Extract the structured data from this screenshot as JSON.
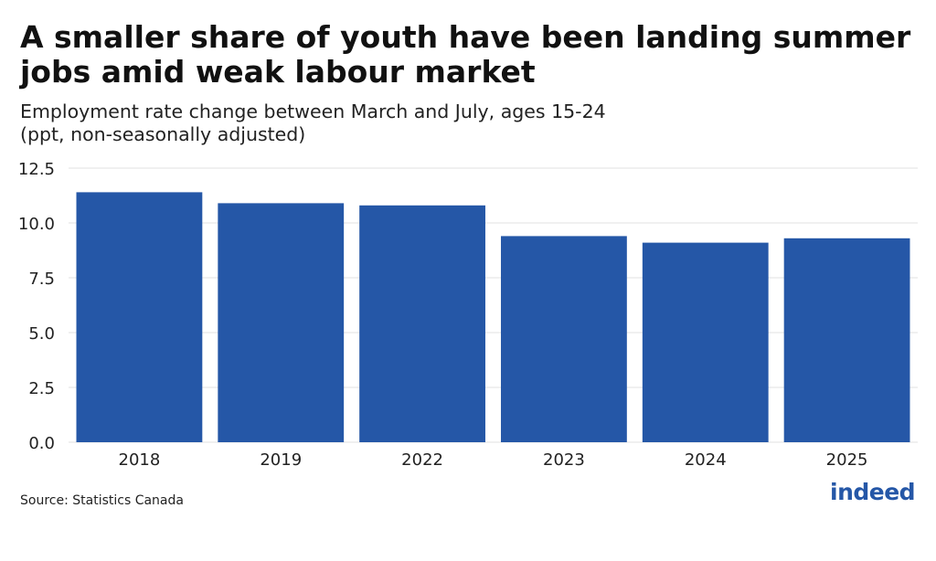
{
  "chart_data": {
    "type": "bar",
    "title": "A smaller share of youth have been landing summer jobs amid weak labour market",
    "subtitle_lines": [
      "Employment rate change between March and July, ages 15-24",
      "(ppt, non-seasonally adjusted)"
    ],
    "categories": [
      "2018",
      "2019",
      "2022",
      "2023",
      "2024",
      "2025"
    ],
    "values": [
      11.4,
      10.9,
      10.8,
      9.4,
      9.1,
      9.3
    ],
    "ylim": [
      0,
      12.5
    ],
    "yticks": [
      "0.0",
      "2.5",
      "5.0",
      "7.5",
      "10.0",
      "12.5"
    ],
    "grid": true,
    "bar_color": "#2557a7",
    "xlabel": "",
    "ylabel": ""
  },
  "source": "Source: Statistics Canada",
  "logo_text": "indeed",
  "colors": {
    "brand": "#2557a7",
    "grid": "#e2e2e2"
  }
}
